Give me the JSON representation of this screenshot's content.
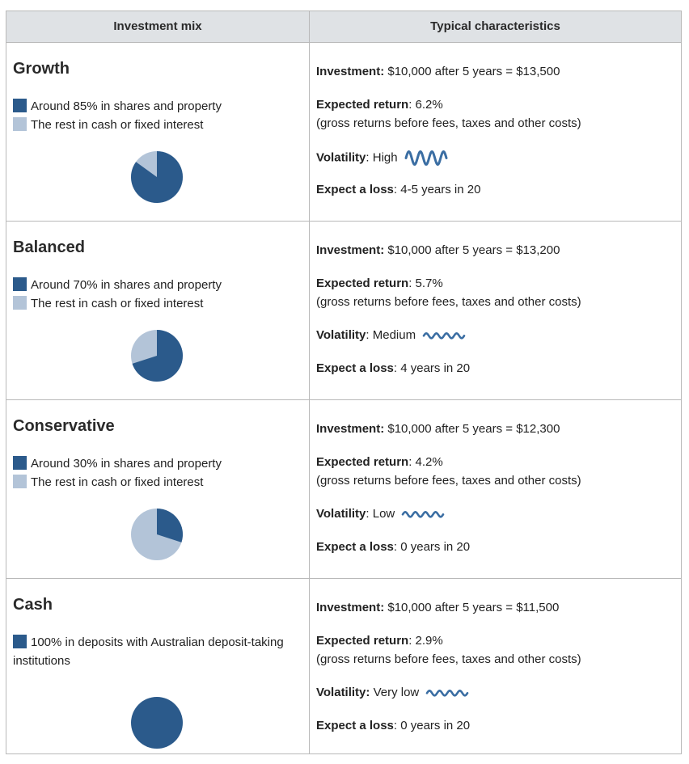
{
  "colors": {
    "shares": "#2b5a8b",
    "cash": "#b3c4d8",
    "wave": "#3b6ea3"
  },
  "header": {
    "left": "Investment mix",
    "right": "Typical characteristics"
  },
  "rows": [
    {
      "title": "Growth",
      "legend": [
        {
          "color": "dark",
          "text": "Around 85% in shares and property"
        },
        {
          "color": "light",
          "text": "The rest in cash or fixed interest"
        }
      ],
      "shares_percent": 85,
      "investment_label": "Investment:",
      "investment_text": " $10,000 after 5 years = $13,500",
      "return_label": "Expected return",
      "return_text": ": 6.2%",
      "return_note": "(gross returns before fees, taxes and other costs)",
      "volatility_label": "Volatility",
      "volatility_text": ": High",
      "volatility_icon": "wave-high-icon",
      "loss_label": "Expect a loss",
      "loss_text": ": 4-5 years in 20"
    },
    {
      "title": "Balanced",
      "legend": [
        {
          "color": "dark",
          "text": "Around 70% in shares and property"
        },
        {
          "color": "light",
          "text": "The rest in cash or fixed interest"
        }
      ],
      "shares_percent": 70,
      "investment_label": "Investment:",
      "investment_text": " $10,000 after 5 years = $13,200",
      "return_label": "Expected return",
      "return_text": ": 5.7%",
      "return_note": "(gross returns before fees, taxes and other costs)",
      "volatility_label": "Volatility",
      "volatility_text": ": Medium",
      "volatility_icon": "wave-medium-icon",
      "loss_label": "Expect a loss",
      "loss_text": ": 4 years in 20"
    },
    {
      "title": "Conservative",
      "legend": [
        {
          "color": "dark",
          "text": "Around 30% in shares and property"
        },
        {
          "color": "light",
          "text": "The rest in cash or fixed interest"
        }
      ],
      "shares_percent": 30,
      "investment_label": "Investment:",
      "investment_text": " $10,000 after 5 years = $12,300",
      "return_label": "Expected return",
      "return_text": ": 4.2%",
      "return_note": "(gross returns before fees, taxes and other costs)",
      "volatility_label": "Volatility",
      "volatility_text": ": Low",
      "volatility_icon": "wave-low-icon",
      "loss_label": "Expect a loss",
      "loss_text": ": 0 years in 20"
    },
    {
      "title": "Cash",
      "legend": [
        {
          "color": "dark",
          "text": "100% in deposits with Australian deposit-taking institutions"
        }
      ],
      "shares_percent": 100,
      "investment_label": "Investment:",
      "investment_text": " $10,000 after 5 years = $11,500",
      "return_label": "Expected return",
      "return_text": ": 2.9%",
      "return_note": "(gross returns before fees, taxes and other costs)",
      "volatility_label": "Volatility:",
      "volatility_text": " Very low",
      "volatility_icon": "wave-very-low-icon",
      "loss_label": "Expect a loss",
      "loss_text": ": 0 years in 20"
    }
  ]
}
